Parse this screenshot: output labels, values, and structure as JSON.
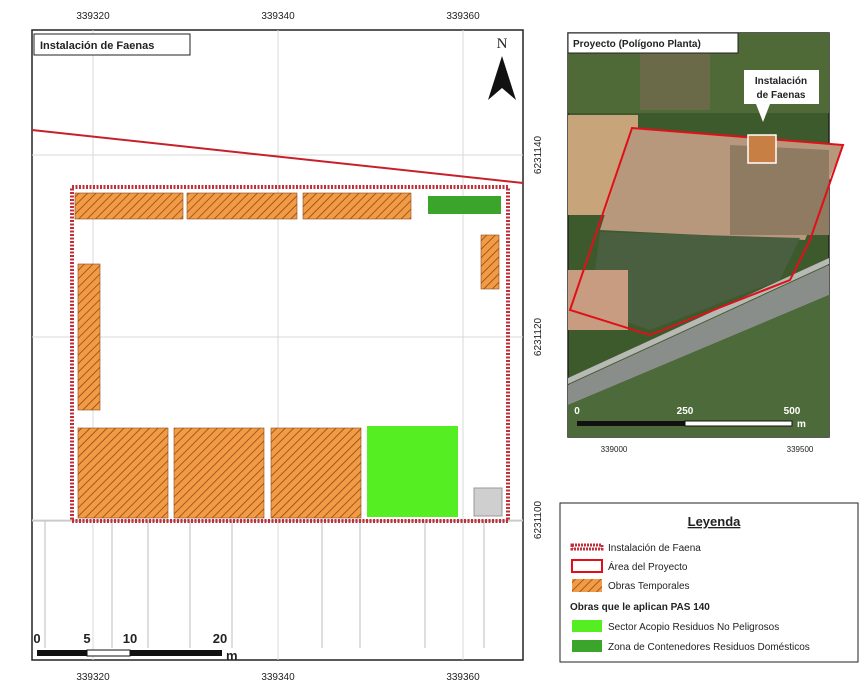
{
  "main_map": {
    "title": "Instalación de Faenas",
    "north": "N",
    "x_ticks_top": [
      339320,
      339340,
      339360
    ],
    "x_ticks_bottom": [
      339320,
      339340,
      339360
    ],
    "y_ticks": [
      6231140,
      6231120,
      6231100
    ],
    "scale_bar": {
      "labels": [
        0,
        5,
        10,
        20
      ],
      "unit": "m"
    }
  },
  "inset_map": {
    "title": "Proyecto (Polígono Planta)",
    "callout": [
      "Instalación",
      "de Faenas"
    ],
    "scale_bar": {
      "labels": [
        0,
        250,
        500
      ],
      "unit": "m"
    },
    "x_ticks": [
      339000,
      339500
    ]
  },
  "legend": {
    "title": "Leyenda",
    "items": [
      "Instalación de Faena",
      "Área del Proyecto",
      "Obras Temporales"
    ],
    "subtitle": "Obras que le aplican PAS 140",
    "pas_items": [
      "Sector Acopio Residuos No Peligrosos",
      "Zona de Contenedores Residuos Domésticos"
    ]
  }
}
